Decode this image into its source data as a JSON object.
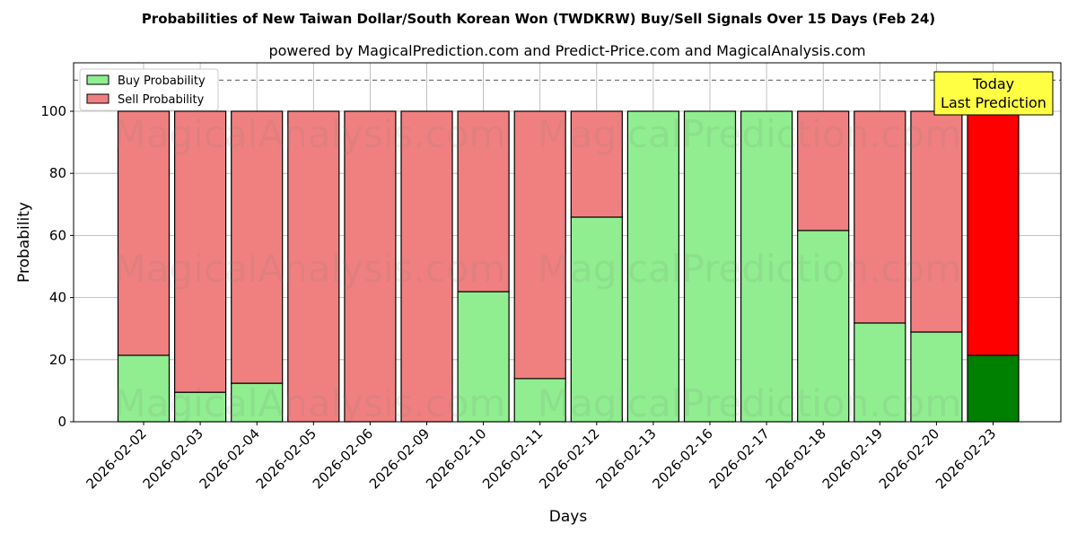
{
  "chart_data": {
    "type": "bar",
    "stacked": true,
    "title": "Probabilities of New Taiwan Dollar/South Korean Won (TWDKRW) Buy/Sell Signals Over 15 Days (Feb 24)",
    "subtitle": "powered by MagicalPrediction.com and Predict-Price.com and MagicalAnalysis.com",
    "xlabel": "Days",
    "ylabel": "Probability",
    "ylim": [
      0,
      115.6
    ],
    "yticks": [
      0,
      20,
      40,
      60,
      80,
      100
    ],
    "grid": true,
    "legend_position": "top-left",
    "reference_line": 110,
    "categories": [
      "2026-02-02",
      "2026-02-03",
      "2026-02-04",
      "2026-02-05",
      "2026-02-06",
      "2026-02-09",
      "2026-02-10",
      "2026-02-11",
      "2026-02-12",
      "2026-02-13",
      "2026-02-16",
      "2026-02-17",
      "2026-02-18",
      "2026-02-19",
      "2026-02-20",
      "2026-02-23"
    ],
    "series": [
      {
        "name": "Buy Probability",
        "color": "#90ee90",
        "values": [
          21.4,
          9.5,
          12.4,
          0,
          0,
          0,
          41.9,
          13.9,
          65.9,
          100,
          100,
          100,
          61.6,
          31.8,
          28.9,
          21.4
        ]
      },
      {
        "name": "Sell Probability",
        "color": "#f08080",
        "values": [
          78.6,
          90.5,
          87.6,
          100,
          100,
          100,
          58.1,
          86.1,
          34.1,
          0,
          0,
          0,
          38.4,
          68.2,
          71.1,
          78.6
        ]
      }
    ],
    "highlight_last": {
      "buy_color": "#008000",
      "sell_color": "#ff0000"
    },
    "annotation": "Today\nLast Prediction",
    "watermarks": [
      "MagicalAnalysis.com",
      "MagicalPrediction.com"
    ]
  }
}
